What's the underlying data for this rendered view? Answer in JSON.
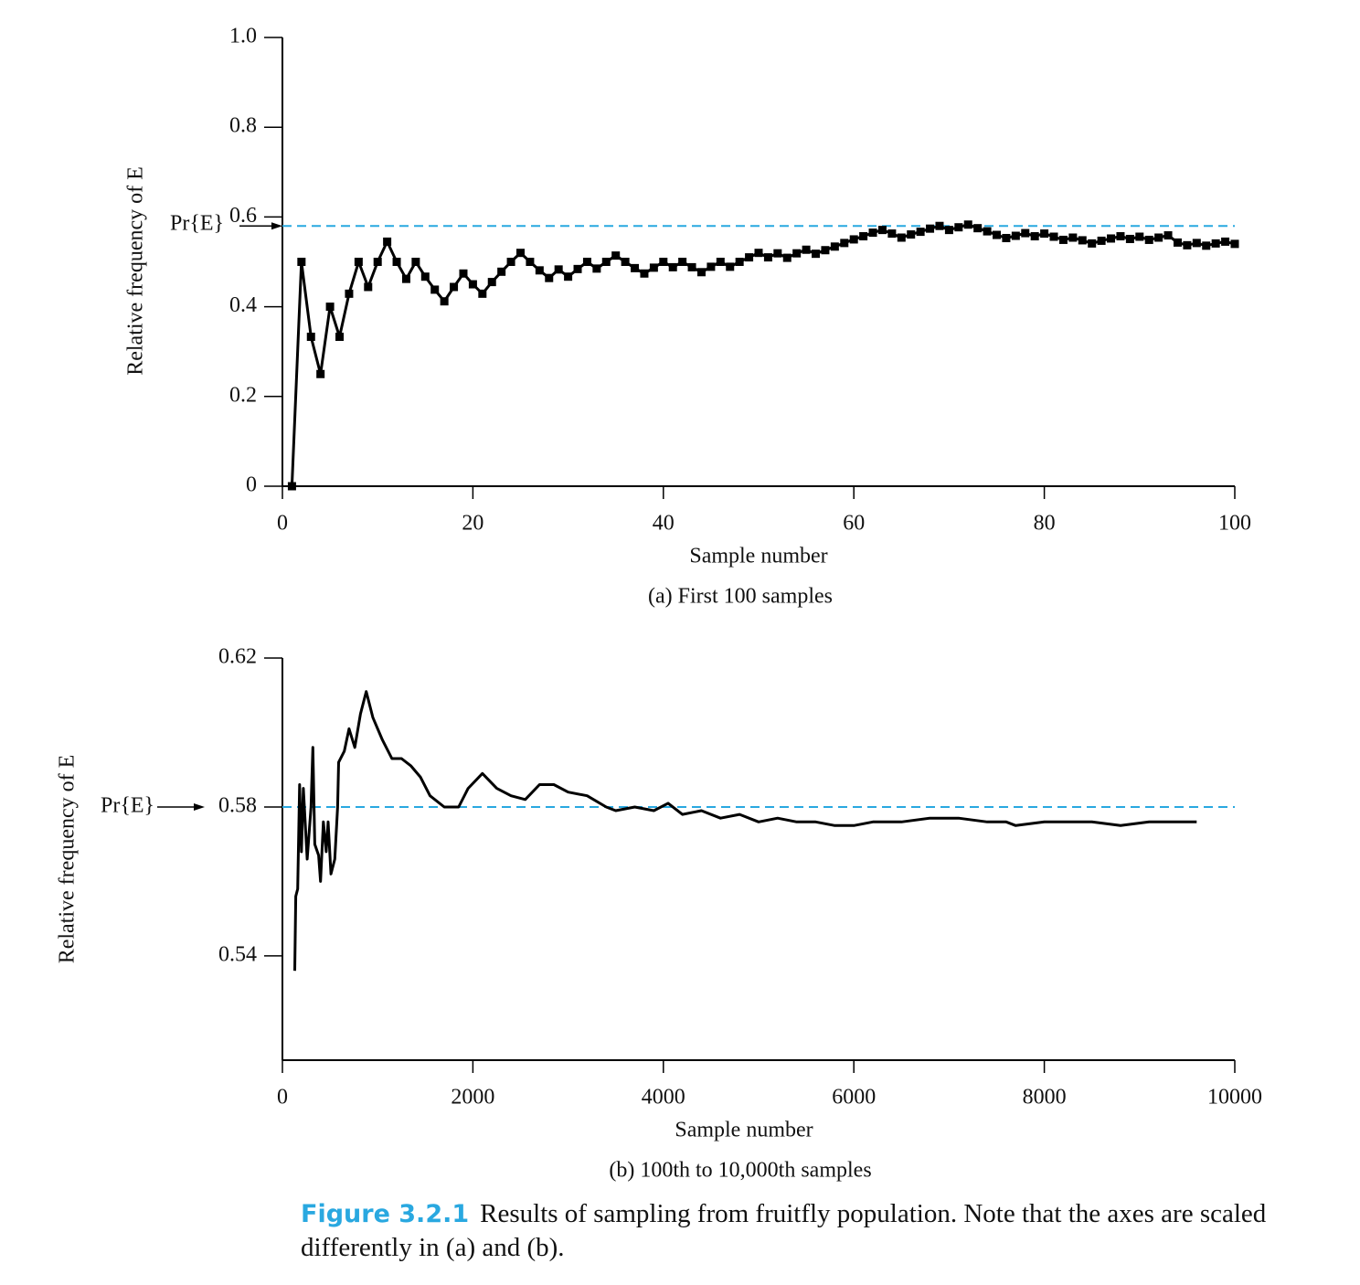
{
  "chart_data": [
    {
      "type": "line",
      "subtitle": "(a) First 100 samples",
      "x_label": "Sample number",
      "y_label": "Relative frequency of E",
      "color": "#000000",
      "marker": "square",
      "x": [
        1,
        2,
        3,
        4,
        5,
        6,
        7,
        8,
        9,
        10,
        11,
        12,
        13,
        14,
        15,
        16,
        17,
        18,
        19,
        20,
        21,
        22,
        23,
        24,
        25,
        26,
        27,
        28,
        29,
        30,
        31,
        32,
        33,
        34,
        35,
        36,
        37,
        38,
        39,
        40,
        41,
        42,
        43,
        44,
        45,
        46,
        47,
        48,
        49,
        50,
        51,
        52,
        53,
        54,
        55,
        56,
        57,
        58,
        59,
        60,
        61,
        62,
        63,
        64,
        65,
        66,
        67,
        68,
        69,
        70,
        71,
        72,
        73,
        74,
        75,
        76,
        77,
        78,
        79,
        80,
        81,
        82,
        83,
        84,
        85,
        86,
        87,
        88,
        89,
        90,
        91,
        92,
        93,
        94,
        95,
        96,
        97,
        98,
        99,
        100
      ],
      "values": [
        0,
        0.5,
        0.333,
        0.25,
        0.4,
        0.333,
        0.429,
        0.5,
        0.444,
        0.5,
        0.545,
        0.5,
        0.462,
        0.5,
        0.467,
        0.438,
        0.412,
        0.444,
        0.474,
        0.45,
        0.429,
        0.455,
        0.478,
        0.5,
        0.52,
        0.5,
        0.481,
        0.464,
        0.483,
        0.467,
        0.484,
        0.5,
        0.485,
        0.5,
        0.514,
        0.5,
        0.486,
        0.474,
        0.487,
        0.5,
        0.488,
        0.5,
        0.488,
        0.477,
        0.489,
        0.5,
        0.489,
        0.5,
        0.51,
        0.52,
        0.51,
        0.519,
        0.509,
        0.519,
        0.527,
        0.518,
        0.526,
        0.534,
        0.542,
        0.55,
        0.557,
        0.565,
        0.571,
        0.563,
        0.554,
        0.561,
        0.567,
        0.574,
        0.58,
        0.571,
        0.577,
        0.583,
        0.575,
        0.568,
        0.56,
        0.553,
        0.558,
        0.564,
        0.557,
        0.563,
        0.556,
        0.549,
        0.554,
        0.548,
        0.541,
        0.547,
        0.552,
        0.557,
        0.551,
        0.556,
        0.549,
        0.554,
        0.559,
        0.543,
        0.537,
        0.542,
        0.536,
        0.541,
        0.545,
        0.54
      ],
      "xlim": [
        0,
        100
      ],
      "xticks": [
        0,
        20,
        40,
        60,
        80,
        100
      ],
      "ylim": [
        0,
        1
      ],
      "yticks": [
        0,
        0.2,
        0.4,
        0.6,
        0.8,
        {
          "value": 1,
          "label": "1.0"
        }
      ],
      "reference_line": {
        "value": 0.58,
        "label": "Pr{E}",
        "color": "#29a8e0",
        "style": "dashed"
      }
    },
    {
      "type": "line",
      "subtitle": "(b) 100th to 10,000th samples",
      "x_label": "Sample number",
      "y_label": "Relative frequency of E",
      "color": "#000000",
      "x": [
        130,
        140,
        160,
        180,
        200,
        220,
        260,
        300,
        320,
        340,
        380,
        400,
        430,
        460,
        480,
        510,
        550,
        580,
        590,
        650,
        700,
        760,
        820,
        880,
        950,
        1050,
        1150,
        1250,
        1350,
        1450,
        1550,
        1700,
        1850,
        1950,
        2100,
        2250,
        2400,
        2550,
        2700,
        2850,
        3000,
        3200,
        3400,
        3500,
        3700,
        3900,
        4050,
        4200,
        4400,
        4600,
        4800,
        5000,
        5200,
        5400,
        5600,
        5800,
        6000,
        6200,
        6500,
        6800,
        7100,
        7400,
        7600,
        7700,
        8000,
        8200,
        8500,
        8800,
        9100,
        9300,
        9600
      ],
      "values": [
        0.536,
        0.556,
        0.558,
        0.586,
        0.568,
        0.585,
        0.566,
        0.58,
        0.596,
        0.57,
        0.567,
        0.56,
        0.576,
        0.568,
        0.576,
        0.562,
        0.566,
        0.58,
        0.592,
        0.595,
        0.601,
        0.596,
        0.605,
        0.611,
        0.604,
        0.598,
        0.593,
        0.593,
        0.591,
        0.588,
        0.583,
        0.58,
        0.58,
        0.585,
        0.589,
        0.585,
        0.583,
        0.582,
        0.586,
        0.586,
        0.584,
        0.583,
        0.58,
        0.579,
        0.58,
        0.579,
        0.581,
        0.578,
        0.579,
        0.577,
        0.578,
        0.576,
        0.577,
        0.576,
        0.576,
        0.575,
        0.575,
        0.576,
        0.576,
        0.577,
        0.577,
        0.576,
        0.576,
        0.575,
        0.576,
        0.576,
        0.576,
        0.575,
        0.576,
        0.576,
        0.576
      ],
      "xlim": [
        0,
        10000
      ],
      "xticks": [
        0,
        2000,
        4000,
        6000,
        8000,
        10000
      ],
      "ylim": [
        0.512,
        0.62
      ],
      "yticks": [
        0.54,
        0.58,
        0.62
      ],
      "reference_line": {
        "value": 0.58,
        "label": "Pr{E}",
        "color": "#29a8e0",
        "style": "dashed"
      }
    }
  ],
  "caption": {
    "label": "Figure 3.2.1",
    "text": "Results of sampling from fruitfly population. Note that the axes are scaled differently in (a) and (b)."
  }
}
